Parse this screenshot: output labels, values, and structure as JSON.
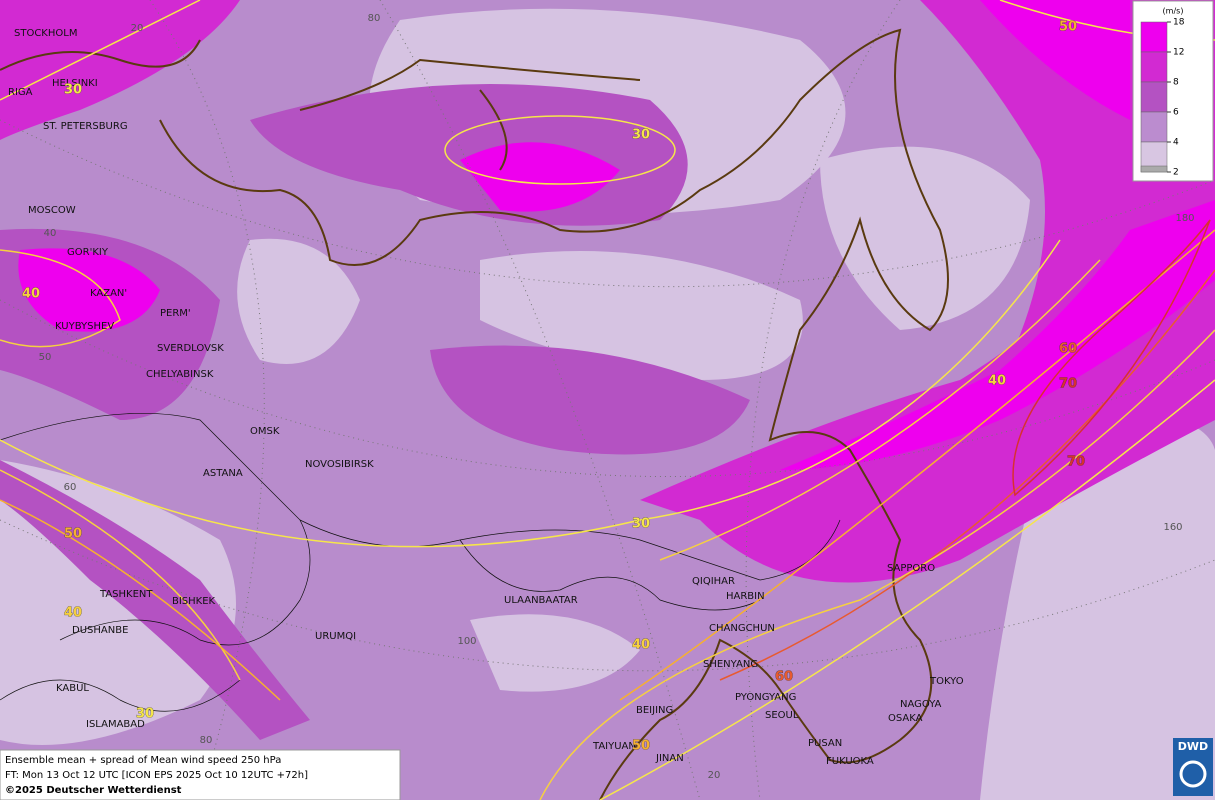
{
  "map": {
    "cities": [
      "STOCKHOLM",
      "HELSINKI",
      "RIGA",
      "ST. PETERSBURG",
      "MOSCOW",
      "GOR'KIY",
      "KAZAN'",
      "KUYBYSHEV",
      "PERM'",
      "SVERDLOVSK",
      "CHELYABINSK",
      "OMSK",
      "ASTANA",
      "NOVOSIBIRSK",
      "TASHKENT",
      "BISHKEK",
      "DUSHANBE",
      "URUMQI",
      "ULAANBAATAR",
      "QIQIHAR",
      "HARBIN",
      "CHANGCHUN",
      "SHENYANG",
      "PYONGYANG",
      "SEOUL",
      "BEIJING",
      "TAIYUAN",
      "JINAN",
      "PUSAN",
      "FUKUOKA",
      "SAPPORO",
      "TOKYO",
      "NAGOYA",
      "OSAKA",
      "KABUL",
      "ISLAMABAD"
    ],
    "contour_labels": [
      {
        "label": 30,
        "color": "#f6e64a"
      },
      {
        "label": 30,
        "color": "#f6e64a"
      },
      {
        "label": 50,
        "color": "#f6b030"
      },
      {
        "label": 40,
        "color": "#f6d040"
      },
      {
        "label": 60,
        "color": "#e85a30"
      },
      {
        "label": 40,
        "color": "#f6d040"
      },
      {
        "label": 70,
        "color": "#d83030"
      },
      {
        "label": 70,
        "color": "#d83030"
      },
      {
        "label": 30,
        "color": "#f6e64a"
      },
      {
        "label": 50,
        "color": "#f6b030"
      },
      {
        "label": 40,
        "color": "#f6d040"
      },
      {
        "label": 40,
        "color": "#f6d040"
      },
      {
        "label": 60,
        "color": "#e85a30"
      },
      {
        "label": 30,
        "color": "#f6e64a"
      },
      {
        "label": 50,
        "color": "#f6b030"
      }
    ],
    "grid_labels": [
      20,
      80,
      40,
      50,
      60,
      100,
      80,
      20,
      180,
      160
    ]
  },
  "legend": {
    "unit": "(m/s)",
    "levels": [
      {
        "label": 18,
        "color": "#ee00ee"
      },
      {
        "label": 12,
        "color": "#d22ad2"
      },
      {
        "label": 8,
        "color": "#b452c2"
      },
      {
        "label": 6,
        "color": "#bb8ccf"
      },
      {
        "label": 4,
        "color": "#d8c6e2"
      },
      {
        "label": 2,
        "color": "#aaaaaa"
      }
    ]
  },
  "caption": {
    "line1": "Ensemble mean + spread of Mean wind speed 250 hPa",
    "line2": "FT: Mon 13 Oct 12 UTC [ICON EPS 2025 Oct 10 12UTC +72h]",
    "line3": "©2025 Deutscher Wetterdienst"
  },
  "logo": {
    "text": "DWD"
  }
}
